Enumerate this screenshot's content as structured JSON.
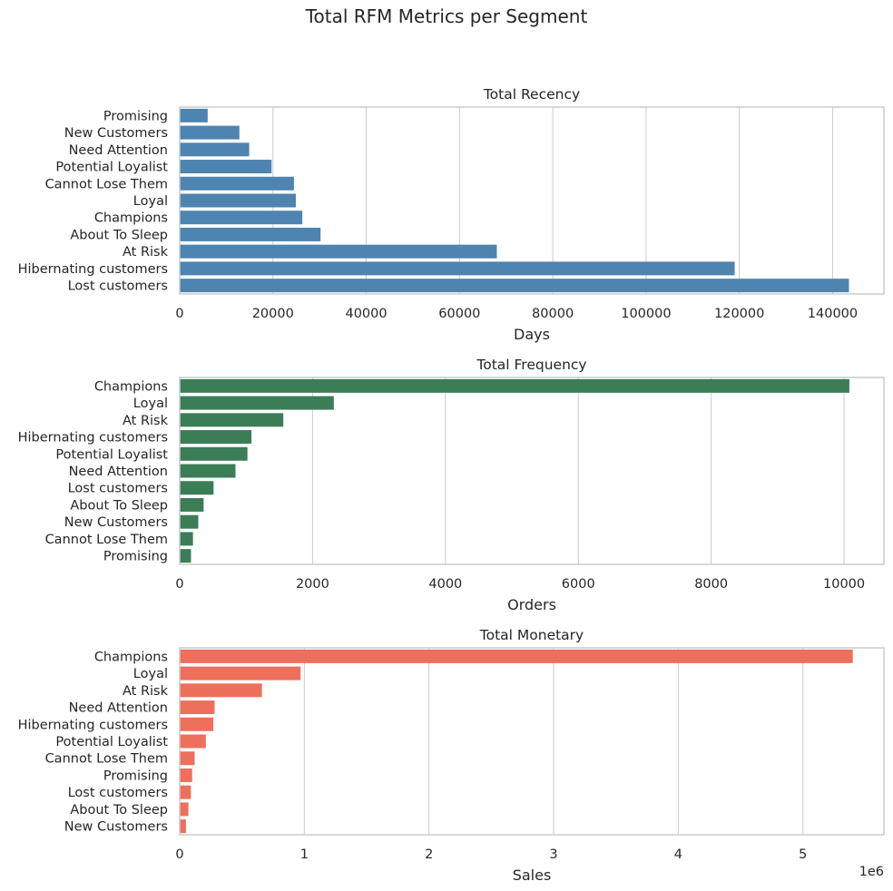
{
  "title": "Total RFM Metrics per Segment",
  "chart_data": [
    {
      "type": "bar",
      "orientation": "horizontal",
      "title": "Total Recency",
      "xlabel": "Days",
      "ylabel": "",
      "color": "#4e84b0",
      "xlim": [
        0,
        151000
      ],
      "xticks": [
        0,
        20000,
        40000,
        60000,
        80000,
        100000,
        120000,
        140000
      ],
      "xtick_labels": [
        "0",
        "20000",
        "40000",
        "60000",
        "80000",
        "100000",
        "120000",
        "140000"
      ],
      "offset_label": "",
      "grid": true,
      "categories": [
        "Promising",
        "New Customers",
        "Need Attention",
        "Potential Loyalist",
        "Cannot Lose Them",
        "Loyal",
        "Champions",
        "About To Sleep",
        "At Risk",
        "Hibernating customers",
        "Lost customers"
      ],
      "values": [
        6000,
        12800,
        14900,
        19700,
        24500,
        24900,
        26300,
        30200,
        68000,
        119000,
        143500
      ]
    },
    {
      "type": "bar",
      "orientation": "horizontal",
      "title": "Total Frequency",
      "xlabel": "Orders",
      "ylabel": "",
      "color": "#3b7d57",
      "xlim": [
        0,
        10600
      ],
      "xticks": [
        0,
        2000,
        4000,
        6000,
        8000,
        10000
      ],
      "xtick_labels": [
        "0",
        "2000",
        "4000",
        "6000",
        "8000",
        "10000"
      ],
      "offset_label": "",
      "grid": true,
      "categories": [
        "Champions",
        "Loyal",
        "At Risk",
        "Hibernating customers",
        "Potential Loyalist",
        "Need Attention",
        "Lost customers",
        "About To Sleep",
        "New Customers",
        "Cannot Lose Them",
        "Promising"
      ],
      "values": [
        10080,
        2320,
        1560,
        1080,
        1020,
        840,
        510,
        360,
        280,
        200,
        170
      ]
    },
    {
      "type": "bar",
      "orientation": "horizontal",
      "title": "Total Monetary",
      "xlabel": "Sales",
      "ylabel": "",
      "color": "#ee6f5b",
      "xlim": [
        0,
        5.65
      ],
      "xticks": [
        0,
        1,
        2,
        3,
        4,
        5
      ],
      "xtick_labels": [
        "0",
        "1",
        "2",
        "3",
        "4",
        "5"
      ],
      "offset_label": "1e6",
      "grid": true,
      "categories": [
        "Champions",
        "Loyal",
        "At Risk",
        "Need Attention",
        "Hibernating customers",
        "Potential Loyalist",
        "Cannot Lose Them",
        "Promising",
        "Lost customers",
        "About To Sleep",
        "New Customers"
      ],
      "values": [
        5.4,
        0.97,
        0.66,
        0.28,
        0.27,
        0.21,
        0.12,
        0.1,
        0.09,
        0.07,
        0.05
      ]
    }
  ]
}
